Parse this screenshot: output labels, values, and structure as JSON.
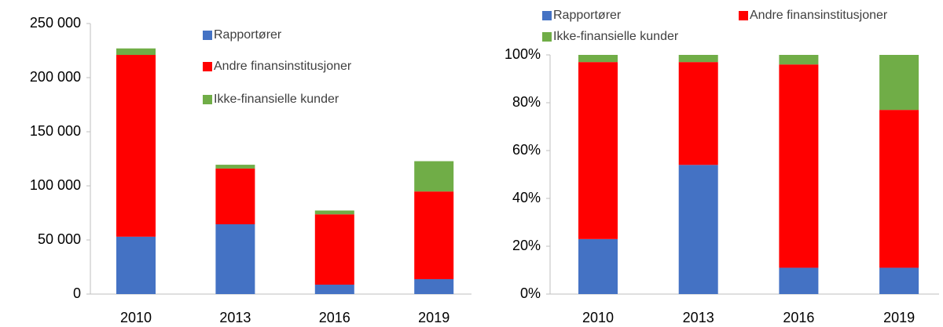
{
  "chart_data": [
    {
      "type": "bar",
      "stacked": true,
      "categories": [
        "2010",
        "2013",
        "2016",
        "2019"
      ],
      "series": [
        {
          "name": "Rapportører",
          "color": "#4472c4",
          "values": [
            53000,
            64500,
            8700,
            13800
          ]
        },
        {
          "name": "Andre finansinstitusjoner",
          "color": "#ff0000",
          "values": [
            168000,
            51500,
            65000,
            81000
          ]
        },
        {
          "name": "Ikke-finansielle kunder",
          "color": "#70ad47",
          "values": [
            6000,
            3500,
            3500,
            28000
          ]
        }
      ],
      "ylim": [
        0,
        250000
      ],
      "yticks": [
        0,
        {
          "value": 50000,
          "label": "50 000"
        },
        {
          "value": 100000,
          "label": "100 000"
        },
        {
          "value": 150000,
          "label": "150 000"
        },
        {
          "value": 200000,
          "label": "200 000"
        },
        {
          "value": 250000,
          "label": "250 000"
        }
      ],
      "legend": "inside-top"
    },
    {
      "type": "bar",
      "stacked": true,
      "categories": [
        "2010",
        "2013",
        "2016",
        "2019"
      ],
      "series": [
        {
          "name": "Rapportører",
          "color": "#4472c4",
          "values": [
            23,
            54,
            11,
            11
          ]
        },
        {
          "name": "Andre finansinstitusjoner",
          "color": "#ff0000",
          "values": [
            74,
            43,
            85,
            66
          ]
        },
        {
          "name": "Ikke-finansielle kunder",
          "color": "#70ad47",
          "values": [
            3,
            3,
            4,
            23
          ]
        }
      ],
      "ylim": [
        0,
        100
      ],
      "yticks": [
        {
          "value": 0,
          "label": "0%"
        },
        {
          "value": 20,
          "label": "20%"
        },
        {
          "value": 40,
          "label": "40%"
        },
        {
          "value": 60,
          "label": "60%"
        },
        {
          "value": 80,
          "label": "80%"
        },
        {
          "value": 100,
          "label": "100%"
        }
      ],
      "legend": "top"
    }
  ]
}
